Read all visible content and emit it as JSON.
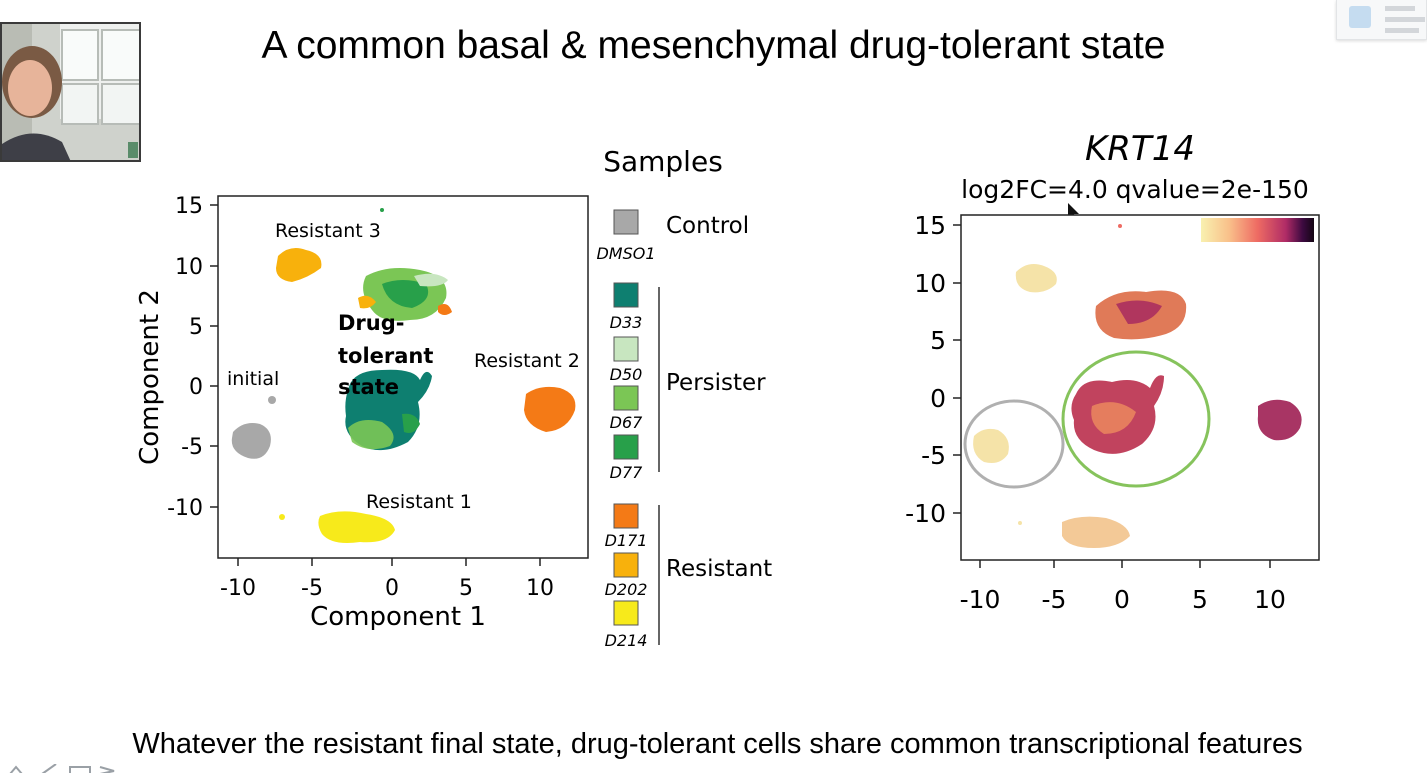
{
  "slide": {
    "title": "A common basal & mesenchymal drug-tolerant state",
    "caption": "Whatever the resistant final state, drug-tolerant cells share common transcriptional features"
  },
  "umap_samples": {
    "xlabel": "Component 1",
    "ylabel": "Component 2",
    "xticks": [
      "-10",
      "-5",
      "0",
      "5",
      "10"
    ],
    "yticks": [
      "15",
      "10",
      "5",
      "0",
      "-5",
      "-10"
    ],
    "annotations": {
      "resistant3": "Resistant 3",
      "resistant2": "Resistant 2",
      "resistant1": "Resistant 1",
      "initial": "initial",
      "dts_line1": "Drug-",
      "dts_line2": "tolerant",
      "dts_line3": "state"
    }
  },
  "legend": {
    "title": "Samples",
    "groups": [
      {
        "label": "Control",
        "items": [
          {
            "label": "DMSO1",
            "color": "#a8a8a8"
          }
        ]
      },
      {
        "label": "Persister",
        "items": [
          {
            "label": "D33",
            "color": "#0e7f70"
          },
          {
            "label": "D50",
            "color": "#c8e6c0"
          },
          {
            "label": "D67",
            "color": "#7bc655"
          },
          {
            "label": "D77",
            "color": "#28a04a"
          }
        ]
      },
      {
        "label": "Resistant",
        "items": [
          {
            "label": "D171",
            "color": "#f47a16"
          },
          {
            "label": "D202",
            "color": "#f8b10c"
          },
          {
            "label": "D214",
            "color": "#f7ea1b"
          }
        ]
      }
    ]
  },
  "umap_krt14": {
    "gene": "KRT14",
    "stats": "log2FC=4.0 qvalue=2e-150",
    "xticks": [
      "-10",
      "-5",
      "0",
      "5",
      "10"
    ],
    "yticks": [
      "15",
      "10",
      "5",
      "0",
      "-5",
      "-10"
    ],
    "colorbar": [
      "#f9f1b0",
      "#f9c08a",
      "#ee6b63",
      "#b02c66",
      "#3c0a40",
      "#140513"
    ]
  }
}
